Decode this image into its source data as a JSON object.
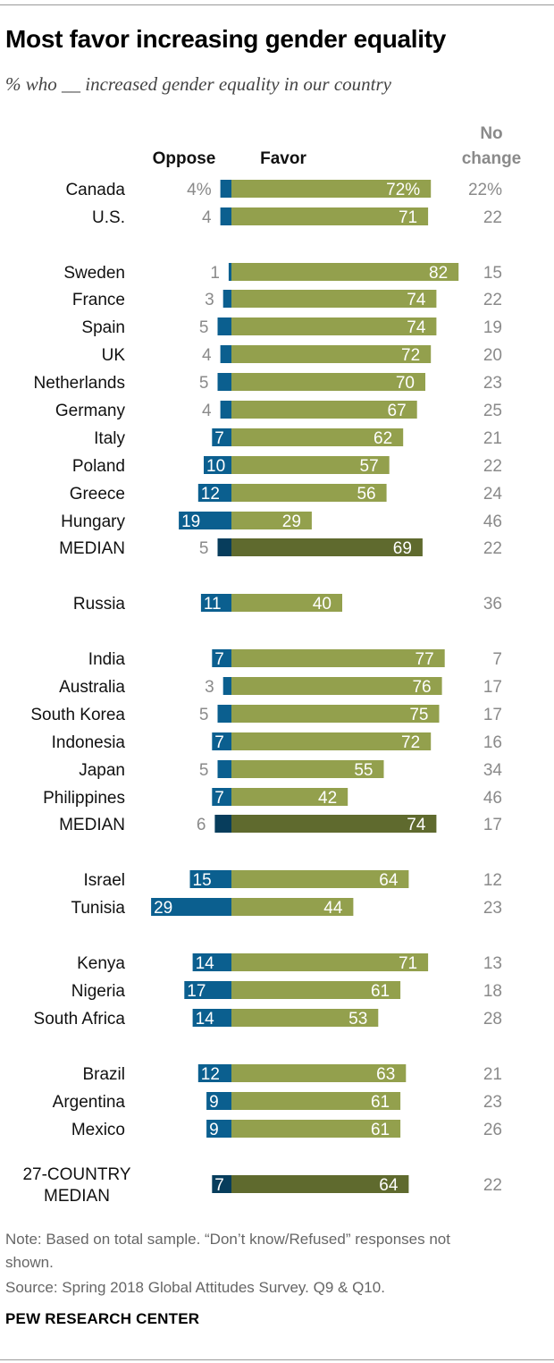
{
  "title": "Most favor increasing gender equality",
  "subtitle": "% who __ increased gender equality in our country",
  "chart_data": {
    "type": "bar",
    "series_labels": {
      "oppose": "Oppose",
      "favor": "Favor",
      "no_change": [
        "No",
        "change"
      ]
    },
    "rows": [
      {
        "label": [
          "Canada"
        ],
        "oppose": 4,
        "favor": 72,
        "no_change": 22,
        "oppose_text": "4%",
        "favor_text": "72%",
        "no_change_text": "22%",
        "median": false
      },
      {
        "label": [
          "U.S."
        ],
        "oppose": 4,
        "favor": 71,
        "no_change": 22,
        "median": false
      },
      {
        "label": [
          "Sweden"
        ],
        "oppose": 1,
        "favor": 82,
        "no_change": 15,
        "median": false
      },
      {
        "label": [
          "France"
        ],
        "oppose": 3,
        "favor": 74,
        "no_change": 22,
        "median": false
      },
      {
        "label": [
          "Spain"
        ],
        "oppose": 5,
        "favor": 74,
        "no_change": 19,
        "median": false
      },
      {
        "label": [
          "UK"
        ],
        "oppose": 4,
        "favor": 72,
        "no_change": 20,
        "median": false
      },
      {
        "label": [
          "Netherlands"
        ],
        "oppose": 5,
        "favor": 70,
        "no_change": 23,
        "median": false
      },
      {
        "label": [
          "Germany"
        ],
        "oppose": 4,
        "favor": 67,
        "no_change": 25,
        "median": false
      },
      {
        "label": [
          "Italy"
        ],
        "oppose": 7,
        "favor": 62,
        "no_change": 21,
        "median": false
      },
      {
        "label": [
          "Poland"
        ],
        "oppose": 10,
        "favor": 57,
        "no_change": 22,
        "median": false
      },
      {
        "label": [
          "Greece"
        ],
        "oppose": 12,
        "favor": 56,
        "no_change": 24,
        "median": false
      },
      {
        "label": [
          "Hungary"
        ],
        "oppose": 19,
        "favor": 29,
        "no_change": 46,
        "median": false
      },
      {
        "label": [
          "MEDIAN"
        ],
        "oppose": 5,
        "favor": 69,
        "no_change": 22,
        "median": true
      },
      {
        "label": [
          "Russia"
        ],
        "oppose": 11,
        "favor": 40,
        "no_change": 36,
        "median": false
      },
      {
        "label": [
          "India"
        ],
        "oppose": 7,
        "favor": 77,
        "no_change": 7,
        "median": false
      },
      {
        "label": [
          "Australia"
        ],
        "oppose": 3,
        "favor": 76,
        "no_change": 17,
        "median": false
      },
      {
        "label": [
          "South Korea"
        ],
        "oppose": 5,
        "favor": 75,
        "no_change": 17,
        "median": false
      },
      {
        "label": [
          "Indonesia"
        ],
        "oppose": 7,
        "favor": 72,
        "no_change": 16,
        "median": false
      },
      {
        "label": [
          "Japan"
        ],
        "oppose": 5,
        "favor": 55,
        "no_change": 34,
        "median": false
      },
      {
        "label": [
          "Philippines"
        ],
        "oppose": 7,
        "favor": 42,
        "no_change": 46,
        "median": false
      },
      {
        "label": [
          "MEDIAN"
        ],
        "oppose": 6,
        "favor": 74,
        "no_change": 17,
        "median": true
      },
      {
        "label": [
          "Israel"
        ],
        "oppose": 15,
        "favor": 64,
        "no_change": 12,
        "median": false
      },
      {
        "label": [
          "Tunisia"
        ],
        "oppose": 29,
        "favor": 44,
        "no_change": 23,
        "median": false
      },
      {
        "label": [
          "Kenya"
        ],
        "oppose": 14,
        "favor": 71,
        "no_change": 13,
        "median": false
      },
      {
        "label": [
          "Nigeria"
        ],
        "oppose": 17,
        "favor": 61,
        "no_change": 18,
        "median": false
      },
      {
        "label": [
          "South Africa"
        ],
        "oppose": 14,
        "favor": 53,
        "no_change": 28,
        "median": false
      },
      {
        "label": [
          "Brazil"
        ],
        "oppose": 12,
        "favor": 63,
        "no_change": 21,
        "median": false
      },
      {
        "label": [
          "Argentina"
        ],
        "oppose": 9,
        "favor": 61,
        "no_change": 23,
        "median": false
      },
      {
        "label": [
          "Mexico"
        ],
        "oppose": 9,
        "favor": 61,
        "no_change": 26,
        "median": false
      },
      {
        "label": [
          "27-COUNTRY",
          "MEDIAN"
        ],
        "oppose": 7,
        "favor": 64,
        "no_change": 22,
        "median": true
      }
    ],
    "colors": {
      "oppose": "#0b5f8f",
      "oppose_median": "#073d5c",
      "favor": "#93a04d",
      "favor_median": "#5f6a2e"
    }
  },
  "footer": {
    "note_line1": "Note: Based on total sample. “Don’t know/Refused” responses not",
    "note_line2": "shown.",
    "source": "Source: Spring 2018 Global Attitudes Survey. Q9 & Q10.",
    "brand": "PEW RESEARCH CENTER"
  }
}
